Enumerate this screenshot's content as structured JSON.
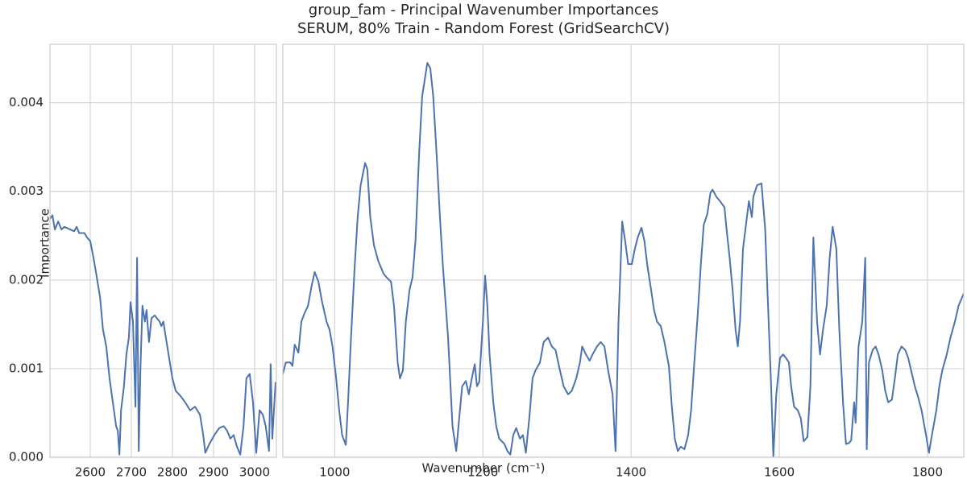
{
  "figure": {
    "title": "group_fam - Principal Wavenumber Importances",
    "subtitle": "SERUM, 80% Train - Random Forest (GridSearchCV)",
    "xlabel": "Wavenumber (cm⁻¹)",
    "ylabel": "Importance"
  },
  "chart_data": [
    {
      "type": "line",
      "grid": true,
      "xlim": [
        2502,
        3053
      ],
      "xticks": [
        2600,
        2700,
        2800,
        2900,
        3000
      ],
      "ylim": [
        0,
        0.00466
      ],
      "yticks": [
        {
          "value": 0,
          "label": "0.000"
        },
        0.001,
        0.002,
        0.003,
        0.004
      ],
      "x": [
        2502,
        2508,
        2514,
        2522,
        2530,
        2537,
        2561,
        2567,
        2573,
        2586,
        2592,
        2600,
        2608,
        2616,
        2624,
        2631,
        2639,
        2647,
        2655,
        2663,
        2667,
        2671,
        2675,
        2682,
        2688,
        2694,
        2698,
        2704,
        2710,
        2714,
        2718,
        2722,
        2727,
        2733,
        2737,
        2743,
        2749,
        2757,
        2769,
        2773,
        2778,
        2784,
        2792,
        2800,
        2808,
        2820,
        2831,
        2843,
        2855,
        2867,
        2875,
        2880,
        2890,
        2902,
        2914,
        2925,
        2933,
        2941,
        2949,
        2957,
        2965,
        2973,
        2980,
        2988,
        2996,
        3004,
        3012,
        3020,
        3027,
        3035,
        3039,
        3043,
        3051
      ],
      "series": [
        {
          "color": "#4c72b0",
          "values": [
            0.00269,
            0.00273,
            0.00257,
            0.00266,
            0.00257,
            0.0026,
            0.00255,
            0.0026,
            0.00253,
            0.00253,
            0.00248,
            0.00244,
            0.00225,
            0.00203,
            0.0018,
            0.00144,
            0.00125,
            0.00089,
            0.00062,
            0.00035,
            0.0003,
            3e-05,
            0.00053,
            0.0008,
            0.00116,
            0.00135,
            0.00175,
            0.00153,
            0.00057,
            0.00225,
            7e-05,
            0.00098,
            0.00171,
            0.00153,
            0.00166,
            0.0013,
            0.00157,
            0.0016,
            0.00153,
            0.00148,
            0.00153,
            0.00135,
            0.00112,
            0.00089,
            0.00075,
            0.00069,
            0.00062,
            0.00053,
            0.00057,
            0.00048,
            0.00025,
            5e-05,
            0.00015,
            0.00025,
            0.00033,
            0.00035,
            0.0003,
            0.00021,
            0.00025,
            0.00012,
            3e-05,
            0.00035,
            0.00089,
            0.00094,
            0.00062,
            5e-05,
            0.00053,
            0.00048,
            0.00035,
            7e-05,
            0.00105,
            0.00021,
            0.00085
          ]
        }
      ]
    },
    {
      "type": "line",
      "grid": true,
      "xlim": [
        930,
        1849
      ],
      "xticks": [
        1000,
        1200,
        1400,
        1600,
        1800
      ],
      "ylim": [
        0,
        0.00466
      ],
      "x": [
        930,
        934,
        940,
        943,
        946,
        951,
        955,
        959,
        964,
        969,
        973,
        978,
        983,
        989,
        993,
        997,
        1002,
        1006,
        1010,
        1015,
        1018,
        1022,
        1027,
        1031,
        1035,
        1041,
        1044,
        1048,
        1053,
        1059,
        1066,
        1070,
        1076,
        1080,
        1085,
        1088,
        1092,
        1096,
        1101,
        1105,
        1109,
        1114,
        1118,
        1125,
        1129,
        1133,
        1138,
        1142,
        1146,
        1153,
        1159,
        1164,
        1168,
        1172,
        1177,
        1181,
        1185,
        1189,
        1192,
        1195,
        1200,
        1203,
        1206,
        1209,
        1214,
        1218,
        1222,
        1229,
        1233,
        1237,
        1241,
        1245,
        1250,
        1254,
        1258,
        1263,
        1267,
        1271,
        1277,
        1282,
        1288,
        1293,
        1298,
        1304,
        1309,
        1315,
        1320,
        1326,
        1331,
        1334,
        1339,
        1344,
        1348,
        1354,
        1359,
        1364,
        1369,
        1375,
        1379,
        1383,
        1388,
        1392,
        1396,
        1401,
        1405,
        1409,
        1414,
        1418,
        1422,
        1427,
        1431,
        1435,
        1440,
        1445,
        1451,
        1455,
        1459,
        1463,
        1467,
        1472,
        1477,
        1481,
        1485,
        1490,
        1494,
        1498,
        1503,
        1507,
        1510,
        1515,
        1520,
        1526,
        1530,
        1533,
        1537,
        1541,
        1544,
        1547,
        1551,
        1555,
        1559,
        1563,
        1565,
        1570,
        1576,
        1581,
        1584,
        1589,
        1592,
        1596,
        1601,
        1605,
        1609,
        1613,
        1616,
        1620,
        1625,
        1629,
        1633,
        1638,
        1642,
        1646,
        1651,
        1655,
        1659,
        1664,
        1668,
        1672,
        1677,
        1681,
        1686,
        1690,
        1694,
        1697,
        1701,
        1703,
        1707,
        1712,
        1716,
        1718,
        1721,
        1726,
        1730,
        1734,
        1739,
        1743,
        1747,
        1752,
        1756,
        1760,
        1765,
        1770,
        1774,
        1779,
        1783,
        1788,
        1792,
        1797,
        1802,
        1806,
        1812,
        1816,
        1820,
        1826,
        1831,
        1837,
        1842,
        1849
      ],
      "series": [
        {
          "color": "#4c72b0",
          "values": [
            0.00094,
            0.00107,
            0.00107,
            0.00103,
            0.00127,
            0.00118,
            0.00153,
            0.00162,
            0.00171,
            0.00194,
            0.00209,
            0.00198,
            0.00175,
            0.00153,
            0.00144,
            0.00125,
            0.00089,
            0.00053,
            0.00025,
            0.00014,
            0.00062,
            0.00135,
            0.00216,
            0.00271,
            0.00307,
            0.00332,
            0.00325,
            0.00271,
            0.00239,
            0.00221,
            0.00207,
            0.00203,
            0.00198,
            0.00171,
            0.00107,
            0.00089,
            0.00098,
            0.00153,
            0.00189,
            0.00203,
            0.00244,
            0.00344,
            0.00407,
            0.00445,
            0.00439,
            0.00407,
            0.00335,
            0.00271,
            0.00216,
            0.00135,
            0.00035,
            7e-05,
            0.00044,
            0.0008,
            0.00086,
            0.00071,
            0.00089,
            0.00105,
            0.0008,
            0.00085,
            0.00153,
            0.00205,
            0.00171,
            0.00116,
            0.00062,
            0.00035,
            0.00021,
            0.00015,
            7e-05,
            3e-05,
            0.00025,
            0.00033,
            0.00021,
            0.00025,
            5e-05,
            0.00048,
            0.00089,
            0.00098,
            0.00107,
            0.0013,
            0.00135,
            0.00125,
            0.00121,
            0.00098,
            0.0008,
            0.00071,
            0.00075,
            0.00089,
            0.00107,
            0.00125,
            0.00116,
            0.00109,
            0.00116,
            0.00125,
            0.0013,
            0.00125,
            0.00098,
            0.00071,
            7e-05,
            0.00153,
            0.00266,
            0.00244,
            0.00218,
            0.00218,
            0.00235,
            0.00248,
            0.00259,
            0.00244,
            0.00216,
            0.00189,
            0.00166,
            0.00153,
            0.00148,
            0.0013,
            0.00103,
            0.00057,
            0.00021,
            7e-05,
            0.00012,
            9e-05,
            0.00025,
            0.00053,
            0.00103,
            0.00162,
            0.00216,
            0.00262,
            0.00275,
            0.00298,
            0.00302,
            0.00294,
            0.00289,
            0.00282,
            0.00248,
            0.00225,
            0.00189,
            0.00144,
            0.00125,
            0.00153,
            0.00235,
            0.00262,
            0.00289,
            0.00271,
            0.00294,
            0.00307,
            0.00309,
            0.00257,
            0.00189,
            0.0008,
            1e-05,
            0.00071,
            0.00112,
            0.00116,
            0.00112,
            0.00107,
            0.0008,
            0.00057,
            0.00053,
            0.00044,
            0.00018,
            0.00023,
            0.0008,
            0.00248,
            0.00153,
            0.00116,
            0.00144,
            0.00171,
            0.00225,
            0.0026,
            0.00235,
            0.00144,
            0.00062,
            0.00015,
            0.00016,
            0.00019,
            0.00062,
            0.00039,
            0.00125,
            0.00153,
            0.00225,
            9e-05,
            0.00107,
            0.00121,
            0.00125,
            0.00116,
            0.00098,
            0.00075,
            0.00062,
            0.00065,
            0.00089,
            0.00116,
            0.00125,
            0.00121,
            0.00112,
            0.00094,
            0.0008,
            0.00066,
            0.00053,
            0.0003,
            5e-05,
            0.00025,
            0.00053,
            0.0008,
            0.00098,
            0.00116,
            0.00135,
            0.00153,
            0.00171,
            0.00185
          ]
        }
      ]
    }
  ]
}
